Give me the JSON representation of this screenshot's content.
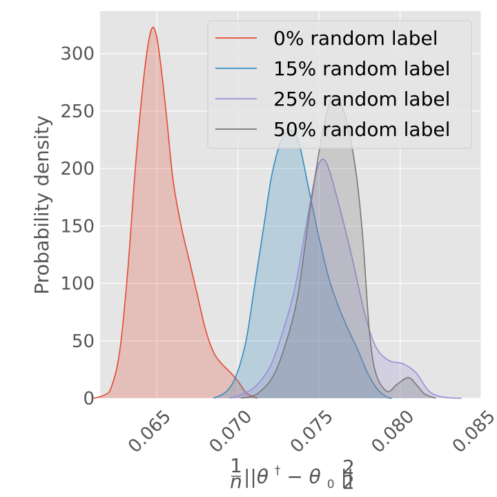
{
  "chart_data": {
    "type": "area",
    "title": "",
    "ylabel": "Probability density",
    "xlabel_parts": {
      "frac_num": "1",
      "frac_den": "n",
      "expr": "||θ",
      "dagger": "†",
      "mid": " − θ",
      "sub": "0",
      "close": "||",
      "subscript": "2",
      "superscript": "2"
    },
    "xlim": [
      0.0615,
      0.085
    ],
    "ylim": [
      0,
      337
    ],
    "x_ticks": [
      0.065,
      0.07,
      0.075,
      0.08,
      0.085
    ],
    "x_tick_labels": [
      "0.065",
      "0.070",
      "0.075",
      "0.080",
      "0.085"
    ],
    "y_ticks": [
      0,
      50,
      100,
      150,
      200,
      250,
      300
    ],
    "y_tick_labels": [
      "0",
      "50",
      "100",
      "150",
      "200",
      "250",
      "300"
    ],
    "grid": true,
    "legend_position": "top-right",
    "series": [
      {
        "name": "0% random label",
        "color": "#e24a33",
        "points": [
          [
            0.0611,
            0
          ],
          [
            0.0618,
            3
          ],
          [
            0.0622,
            10
          ],
          [
            0.0627,
            40
          ],
          [
            0.0632,
            110
          ],
          [
            0.0637,
            205
          ],
          [
            0.0642,
            280
          ],
          [
            0.0646,
            318
          ],
          [
            0.0649,
            320
          ],
          [
            0.0652,
            295
          ],
          [
            0.0656,
            245
          ],
          [
            0.066,
            190
          ],
          [
            0.0665,
            150
          ],
          [
            0.067,
            120
          ],
          [
            0.0675,
            90
          ],
          [
            0.068,
            60
          ],
          [
            0.0685,
            40
          ],
          [
            0.069,
            30
          ],
          [
            0.0695,
            23
          ],
          [
            0.07,
            15
          ],
          [
            0.0705,
            5
          ],
          [
            0.071,
            1
          ],
          [
            0.0712,
            0
          ]
        ]
      },
      {
        "name": "15% random label",
        "color": "#348abd",
        "points": [
          [
            0.0685,
            0
          ],
          [
            0.0693,
            6
          ],
          [
            0.0699,
            20
          ],
          [
            0.0705,
            50
          ],
          [
            0.071,
            95
          ],
          [
            0.0716,
            150
          ],
          [
            0.0721,
            195
          ],
          [
            0.0727,
            225
          ],
          [
            0.0733,
            233
          ],
          [
            0.0738,
            220
          ],
          [
            0.0744,
            180
          ],
          [
            0.075,
            140
          ],
          [
            0.0756,
            105
          ],
          [
            0.0762,
            80
          ],
          [
            0.0768,
            60
          ],
          [
            0.0774,
            42
          ],
          [
            0.078,
            22
          ],
          [
            0.0786,
            8
          ],
          [
            0.0792,
            1
          ],
          [
            0.0795,
            0
          ]
        ]
      },
      {
        "name": "25% random label",
        "color": "#988ed5",
        "points": [
          [
            0.0695,
            0
          ],
          [
            0.0705,
            5
          ],
          [
            0.0712,
            12
          ],
          [
            0.072,
            28
          ],
          [
            0.0727,
            55
          ],
          [
            0.0735,
            95
          ],
          [
            0.0742,
            150
          ],
          [
            0.0748,
            195
          ],
          [
            0.0752,
            208
          ],
          [
            0.0756,
            200
          ],
          [
            0.0762,
            170
          ],
          [
            0.077,
            125
          ],
          [
            0.0778,
            75
          ],
          [
            0.0785,
            45
          ],
          [
            0.0793,
            33
          ],
          [
            0.0802,
            30
          ],
          [
            0.081,
            22
          ],
          [
            0.0818,
            6
          ],
          [
            0.0827,
            1
          ],
          [
            0.0838,
            0
          ]
        ]
      },
      {
        "name": "50% random label",
        "color": "#777777",
        "points": [
          [
            0.0702,
            0
          ],
          [
            0.0712,
            4
          ],
          [
            0.0722,
            20
          ],
          [
            0.073,
            50
          ],
          [
            0.0737,
            90
          ],
          [
            0.0744,
            160
          ],
          [
            0.0752,
            230
          ],
          [
            0.0758,
            262
          ],
          [
            0.0763,
            258
          ],
          [
            0.0768,
            235
          ],
          [
            0.0773,
            195
          ],
          [
            0.0777,
            140
          ],
          [
            0.0781,
            60
          ],
          [
            0.0785,
            22
          ],
          [
            0.0792,
            6
          ],
          [
            0.0798,
            12
          ],
          [
            0.0805,
            18
          ],
          [
            0.081,
            12
          ],
          [
            0.0815,
            4
          ],
          [
            0.0822,
            0
          ]
        ]
      }
    ]
  }
}
